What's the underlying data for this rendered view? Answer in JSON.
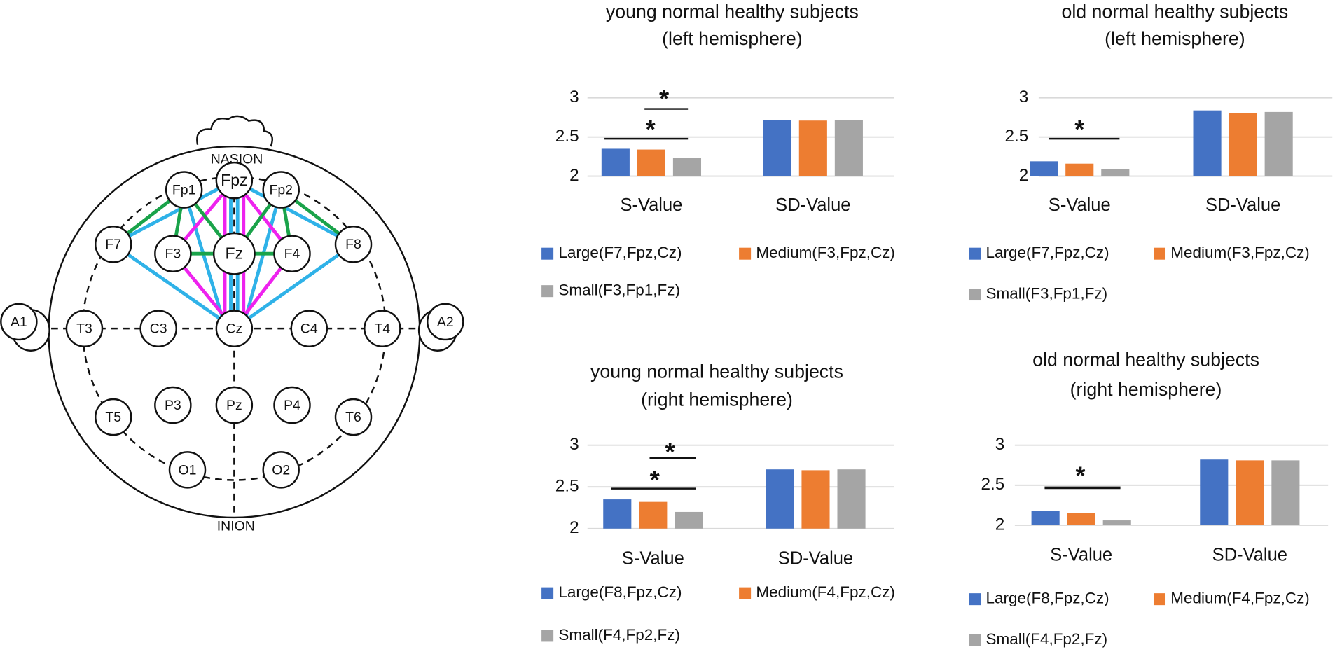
{
  "diagram": {
    "landmarks": [
      "NASION",
      "INION"
    ],
    "electrodes": [
      "Fpz",
      "Fp1",
      "Fp2",
      "F7",
      "F3",
      "Fz",
      "F4",
      "F8",
      "A1",
      "T3",
      "C3",
      "Cz",
      "C4",
      "T4",
      "A2",
      "T5",
      "P3",
      "Pz",
      "P4",
      "T6",
      "O1",
      "O2"
    ]
  },
  "chart_data": [
    {
      "type": "bar",
      "title": [
        "young normal healthy  subjects",
        "(left hemisphere)"
      ],
      "categories": [
        "S-Value",
        "SD-Value"
      ],
      "series": [
        {
          "name": "Large(F7,Fpz,Cz)",
          "color": "#4472c4",
          "values": [
            2.35,
            2.72
          ]
        },
        {
          "name": "Medium(F3,Fpz,Cz)",
          "color": "#ed7d31",
          "values": [
            2.34,
            2.71
          ]
        },
        {
          "name": "Small(F3,Fp1,Fz)",
          "color": "#a5a5a5",
          "values": [
            2.23,
            2.72
          ]
        }
      ],
      "ylim": [
        2,
        3
      ],
      "yticks": [
        2,
        2.5,
        3
      ],
      "grid": true,
      "annotations": [
        "*",
        "*"
      ]
    },
    {
      "type": "bar",
      "title": [
        "old normal healthy  subjects",
        "(left hemisphere)"
      ],
      "categories": [
        "S-Value",
        "SD-Value"
      ],
      "series": [
        {
          "name": "Large(F7,Fpz,Cz)",
          "color": "#4472c4",
          "values": [
            2.19,
            2.84
          ]
        },
        {
          "name": "Medium(F3,Fpz,Cz)",
          "color": "#ed7d31",
          "values": [
            2.16,
            2.81
          ]
        },
        {
          "name": "Small(F3,Fp1,Fz)",
          "color": "#a5a5a5",
          "values": [
            2.09,
            2.82
          ]
        }
      ],
      "ylim": [
        2,
        3
      ],
      "yticks": [
        2,
        2.5,
        3
      ],
      "grid": true,
      "annotations": [
        "*"
      ]
    },
    {
      "type": "bar",
      "title": [
        "young normal healthy  subjects",
        "(right hemisphere)"
      ],
      "categories": [
        "S-Value",
        "SD-Value"
      ],
      "series": [
        {
          "name": "Large(F8,Fpz,Cz)",
          "color": "#4472c4",
          "values": [
            2.35,
            2.71
          ]
        },
        {
          "name": "Medium(F4,Fpz,Cz)",
          "color": "#ed7d31",
          "values": [
            2.32,
            2.7
          ]
        },
        {
          "name": "Small(F4,Fp2,Fz)",
          "color": "#a5a5a5",
          "values": [
            2.2,
            2.71
          ]
        }
      ],
      "ylim": [
        2,
        3
      ],
      "yticks": [
        2,
        2.5,
        3
      ],
      "grid": true,
      "annotations": [
        "*",
        "*"
      ]
    },
    {
      "type": "bar",
      "title": [
        "old normal healthy  subjects",
        "(right hemisphere)"
      ],
      "categories": [
        "S-Value",
        "SD-Value"
      ],
      "series": [
        {
          "name": "Large(F8,Fpz,Cz)",
          "color": "#4472c4",
          "values": [
            2.18,
            2.82
          ]
        },
        {
          "name": "Medium(F4,Fpz,Cz)",
          "color": "#ed7d31",
          "values": [
            2.15,
            2.81
          ]
        },
        {
          "name": "Small(F4,Fp2,Fz)",
          "color": "#a5a5a5",
          "values": [
            2.06,
            2.81
          ]
        }
      ],
      "ylim": [
        2,
        3
      ],
      "yticks": [
        2,
        2.5,
        3
      ],
      "grid": true,
      "annotations": [
        "*"
      ]
    }
  ]
}
